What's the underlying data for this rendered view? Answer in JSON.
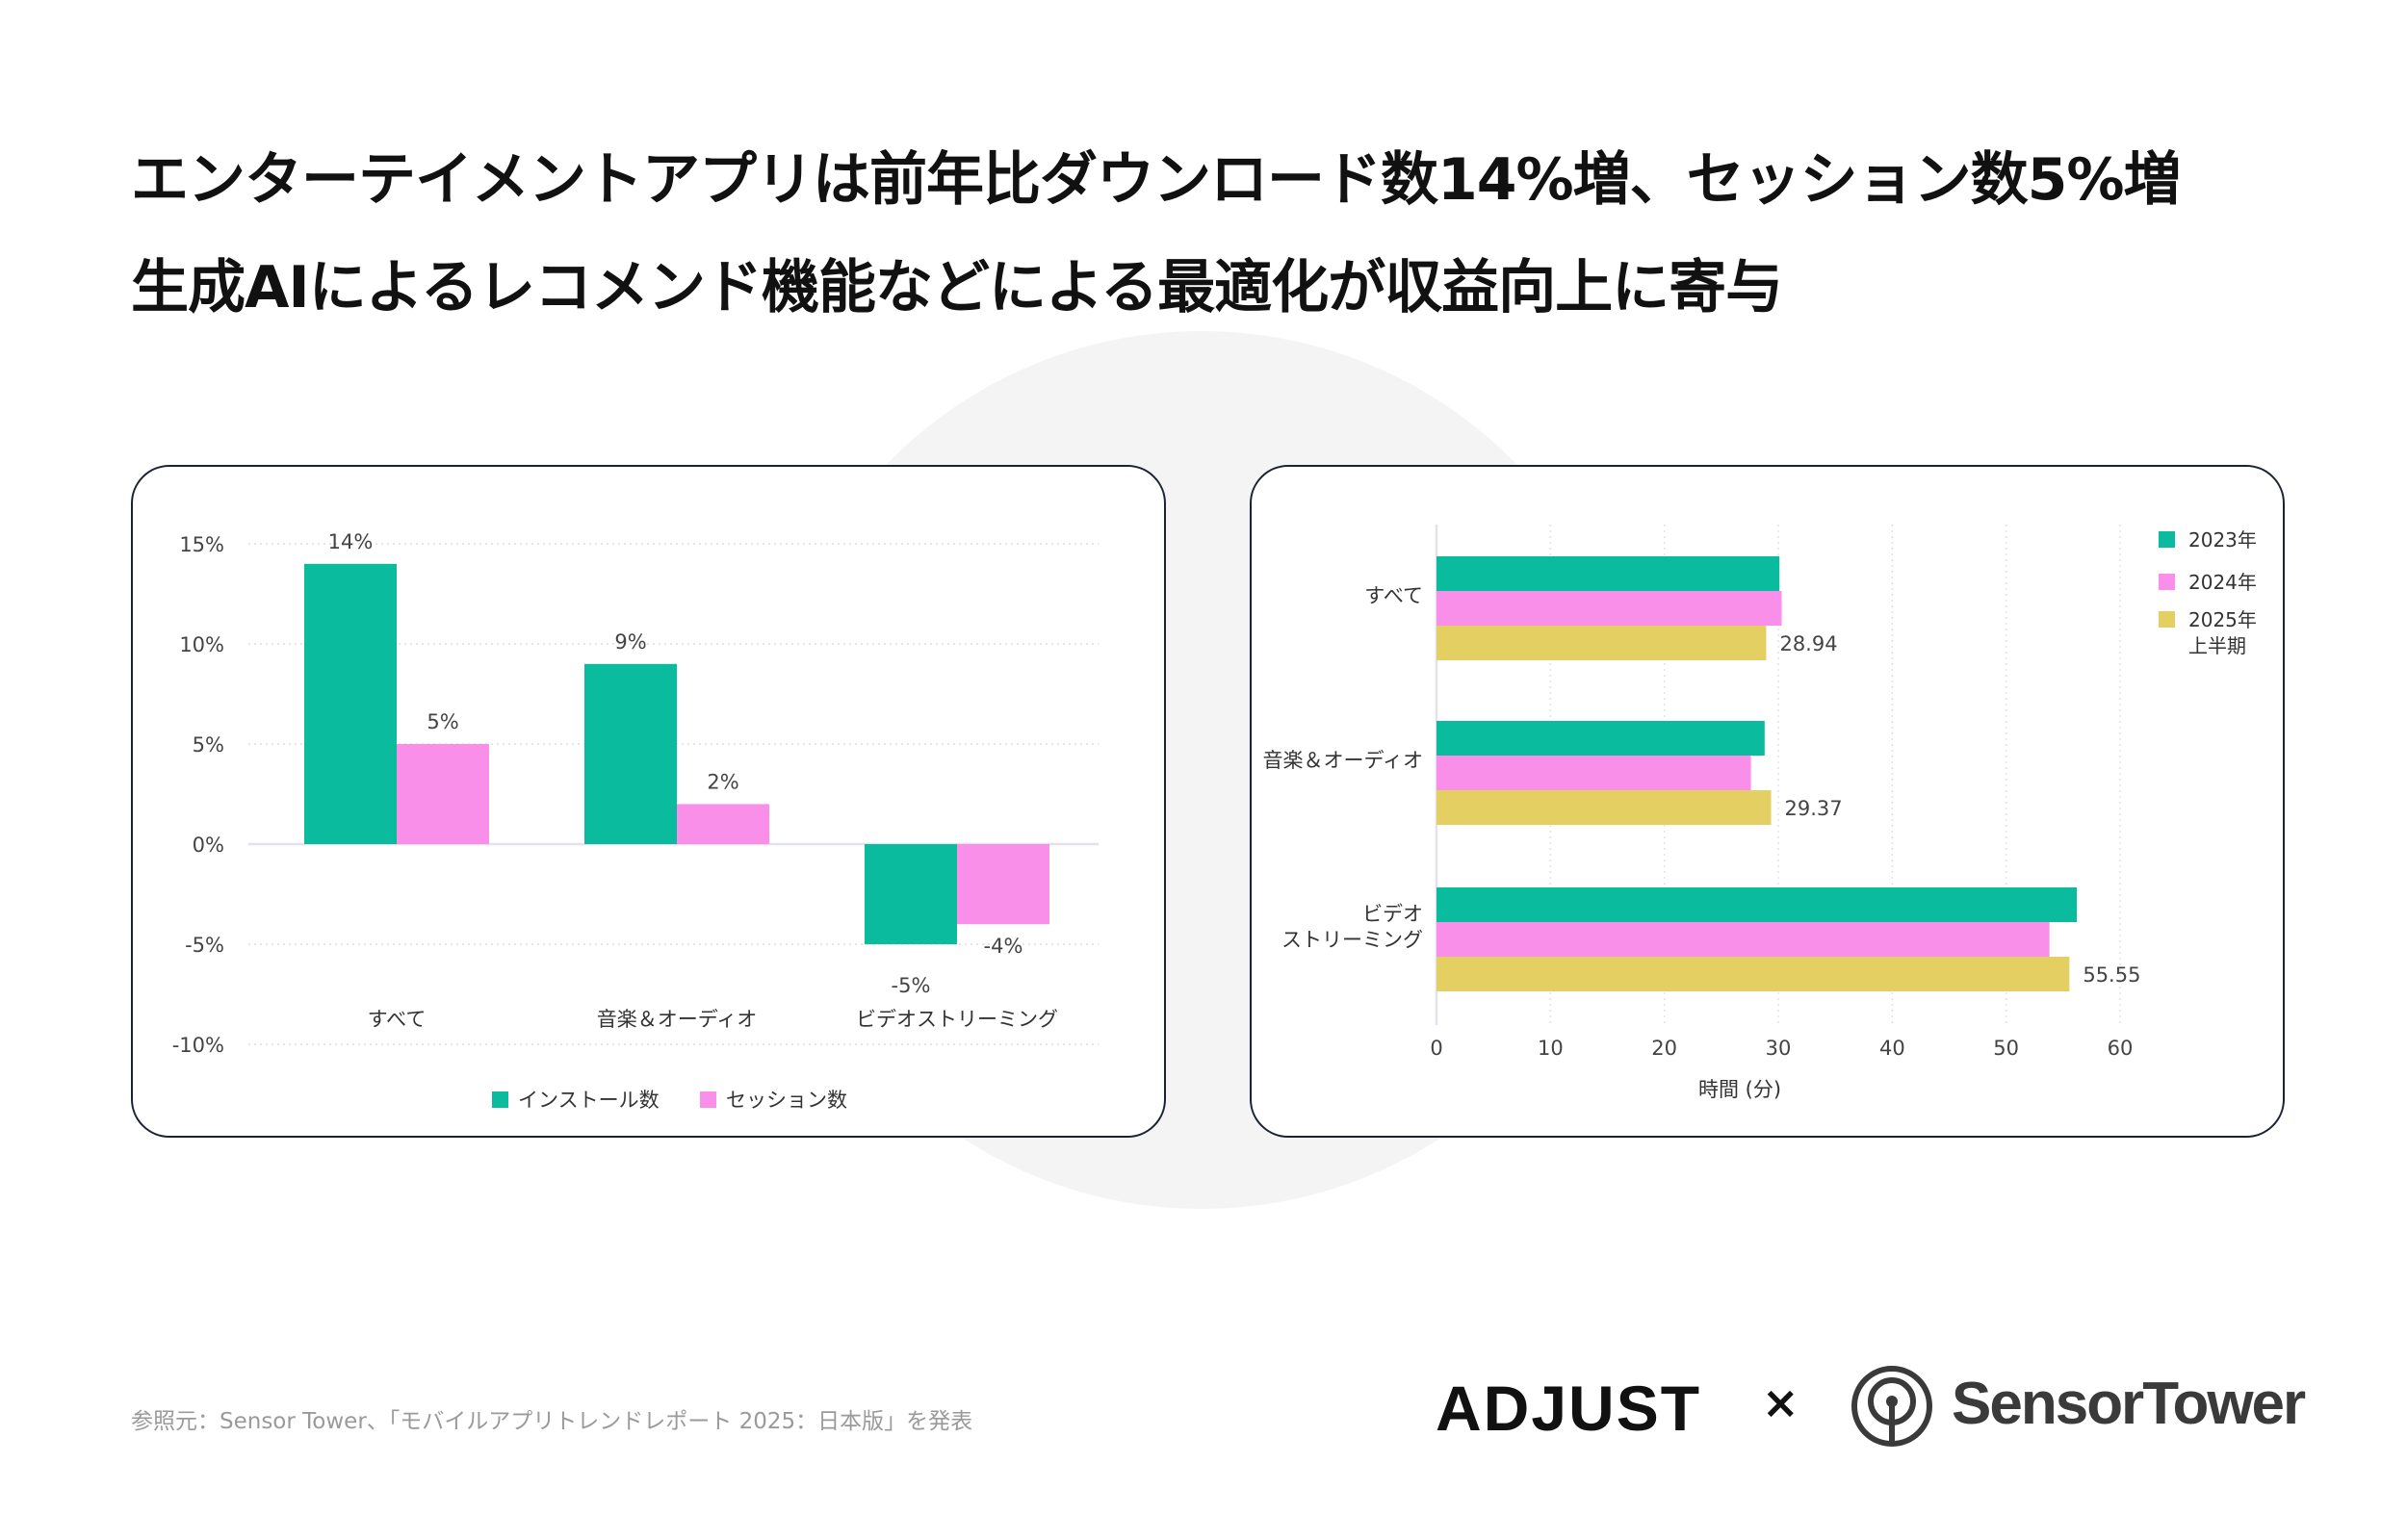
{
  "title": {
    "line1": "エンターテイメントアプリは前年比ダウンロード数14%増、セッション数5%増",
    "line2": "生成AIによるレコメンド機能などによる最適化が収益向上に寄与"
  },
  "chart_data": [
    {
      "type": "bar",
      "title": "",
      "categories": [
        "すべて",
        "音楽＆オーディオ",
        "ビデオストリーミング"
      ],
      "series": [
        {
          "name": "インストール数",
          "values": [
            14,
            9,
            -5
          ],
          "labels": [
            "14%",
            "9%",
            "-5%"
          ],
          "color": "#0bbb9e"
        },
        {
          "name": "セッション数",
          "values": [
            5,
            2,
            -4
          ],
          "labels": [
            "5%",
            "2%",
            "-4%"
          ],
          "color": "#f98fe9"
        }
      ],
      "yticks": [
        15,
        10,
        5,
        0,
        -5,
        -10
      ],
      "ytick_labels": [
        "15%",
        "10%",
        "5%",
        "0%",
        "-5%",
        "-10%"
      ],
      "ylim": [
        -10,
        15
      ],
      "xlabel": "",
      "ylabel": "",
      "grid": true,
      "legend": "bottom"
    },
    {
      "type": "bar",
      "orientation": "horizontal",
      "title": "",
      "categories": [
        [
          "すべて"
        ],
        [
          "音楽＆オーディオ"
        ],
        [
          "ビデオ",
          "ストリーミング"
        ]
      ],
      "series": [
        {
          "name": "2023年",
          "values": [
            30.1,
            28.8,
            56.2
          ],
          "color": "#0bbb9e"
        },
        {
          "name": "2024年",
          "values": [
            30.3,
            27.6,
            53.8
          ],
          "color": "#f98fe9"
        },
        {
          "name": "2025年 上半期",
          "name_lines": [
            "2025年",
            "上半期"
          ],
          "values": [
            28.94,
            29.37,
            55.55
          ],
          "labels": [
            "28.94",
            "29.37",
            "55.55"
          ],
          "color": "#e3cf62"
        }
      ],
      "xticks": [
        0,
        10,
        20,
        30,
        40,
        50,
        60
      ],
      "xtick_labels": [
        "0",
        "10",
        "20",
        "30",
        "40",
        "50",
        "60"
      ],
      "xlim": [
        0,
        60
      ],
      "xlabel": "時間 (分)",
      "grid": true,
      "legend": "top-right"
    }
  ],
  "footer": {
    "source": "参照元：Sensor Tower、「モバイルアプリトレンドレポート 2025：日本版」を発表",
    "logo_adjust": "ADJUST",
    "times": "×",
    "logo_sensortower": "SensorTower"
  }
}
